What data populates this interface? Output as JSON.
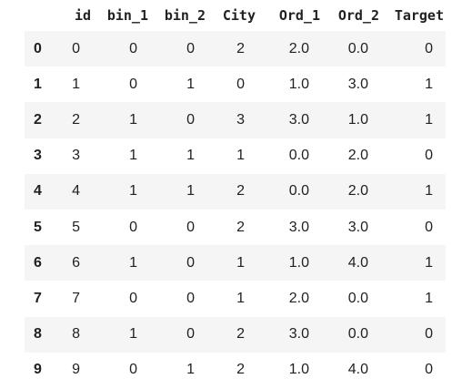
{
  "dataframe": {
    "columns": [
      "",
      "id",
      "bin_1",
      "bin_2",
      "City",
      "Ord_1",
      "Ord_2",
      "Target"
    ],
    "rows": [
      {
        "index": "0",
        "id": "0",
        "bin_1": "0",
        "bin_2": "0",
        "City": "2",
        "Ord_1": "2.0",
        "Ord_2": "0.0",
        "Target": "0"
      },
      {
        "index": "1",
        "id": "1",
        "bin_1": "0",
        "bin_2": "1",
        "City": "0",
        "Ord_1": "1.0",
        "Ord_2": "3.0",
        "Target": "1"
      },
      {
        "index": "2",
        "id": "2",
        "bin_1": "1",
        "bin_2": "0",
        "City": "3",
        "Ord_1": "3.0",
        "Ord_2": "1.0",
        "Target": "1"
      },
      {
        "index": "3",
        "id": "3",
        "bin_1": "1",
        "bin_2": "1",
        "City": "1",
        "Ord_1": "0.0",
        "Ord_2": "2.0",
        "Target": "0"
      },
      {
        "index": "4",
        "id": "4",
        "bin_1": "1",
        "bin_2": "1",
        "City": "2",
        "Ord_1": "0.0",
        "Ord_2": "2.0",
        "Target": "1"
      },
      {
        "index": "5",
        "id": "5",
        "bin_1": "0",
        "bin_2": "0",
        "City": "2",
        "Ord_1": "3.0",
        "Ord_2": "3.0",
        "Target": "0"
      },
      {
        "index": "6",
        "id": "6",
        "bin_1": "1",
        "bin_2": "0",
        "City": "1",
        "Ord_1": "1.0",
        "Ord_2": "4.0",
        "Target": "1"
      },
      {
        "index": "7",
        "id": "7",
        "bin_1": "0",
        "bin_2": "0",
        "City": "1",
        "Ord_1": "2.0",
        "Ord_2": "0.0",
        "Target": "1"
      },
      {
        "index": "8",
        "id": "8",
        "bin_1": "1",
        "bin_2": "0",
        "City": "2",
        "Ord_1": "3.0",
        "Ord_2": "0.0",
        "Target": "0"
      },
      {
        "index": "9",
        "id": "9",
        "bin_1": "0",
        "bin_2": "1",
        "City": "2",
        "Ord_1": "1.0",
        "Ord_2": "4.0",
        "Target": "0"
      }
    ]
  },
  "colors": {
    "text": "#212121",
    "stripe": "#f5f5f5",
    "background": "#ffffff"
  }
}
